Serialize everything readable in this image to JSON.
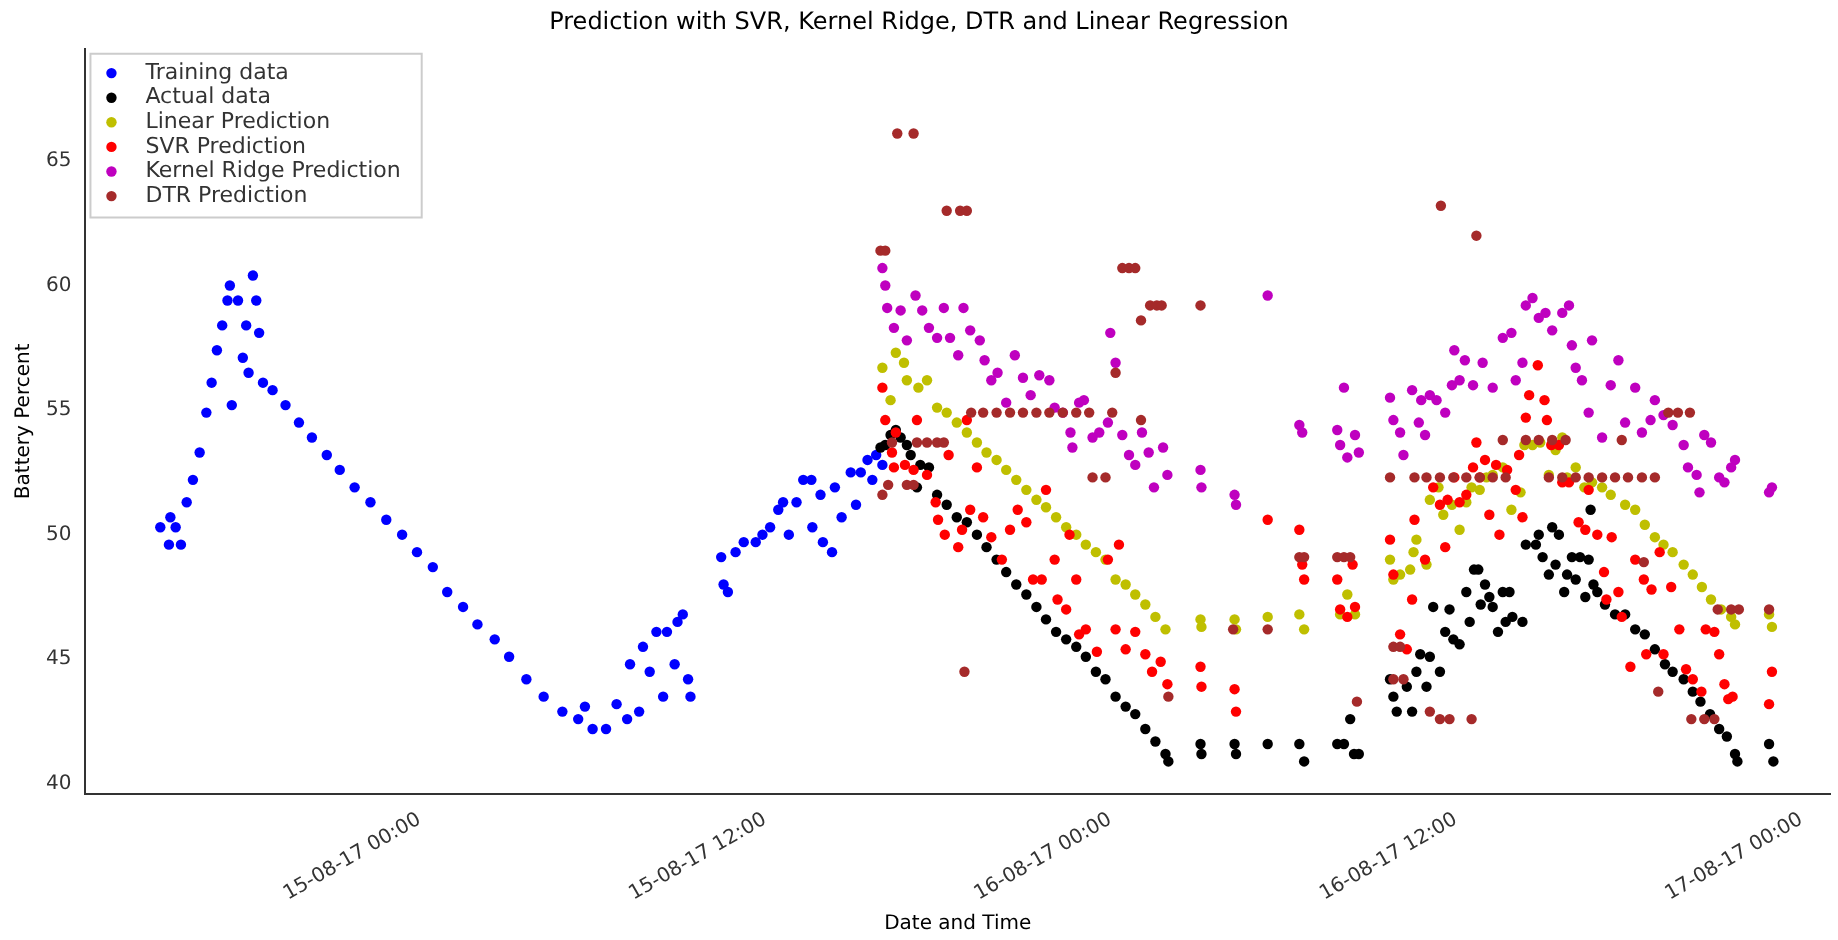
{
  "chart_data": {
    "type": "scatter",
    "title": "Prediction with SVR, Kernel Ridge, DTR and Linear Regression",
    "xlabel": "Date and Time",
    "ylabel": "Battery Percent",
    "xlim": [
      "--08-14T12:24",
      "--08-17T01:00"
    ],
    "ylim": [
      39.6,
      69.5
    ],
    "xticks": [
      {
        "value": "--08-15T00:00",
        "label": "15-08-17 00:00"
      },
      {
        "value": "--08-15T12:00",
        "label": "15-08-17 12:00"
      },
      {
        "value": "--08-16T00:00",
        "label": "16-08-17 00:00"
      },
      {
        "value": "--08-16T12:00",
        "label": "16-08-17 12:00"
      },
      {
        "value": "--08-17T00:00",
        "label": "17-08-17 00:00"
      }
    ],
    "yticks": [
      40,
      45,
      50,
      55,
      60,
      65
    ],
    "grid": false,
    "legend": "top left",
    "marker": "circle",
    "series": [
      {
        "name": "Training data",
        "color": "#0000ff",
        "x": [
          "--08-14T15:00",
          "--08-14T15:18",
          "--08-14T15:21",
          "--08-14T15:32",
          "--08-14T15:43",
          "--08-14T15:55",
          "--08-14T16:08",
          "--08-14T16:22",
          "--08-14T16:36",
          "--08-14T16:47",
          "--08-14T16:58",
          "--08-14T17:09",
          "--08-14T17:20",
          "--08-14T17:25",
          "--08-14T17:29",
          "--08-14T17:42",
          "--08-14T17:52",
          "--08-14T17:59",
          "--08-14T18:04",
          "--08-14T18:13",
          "--08-14T18:20",
          "--08-14T18:26",
          "--08-14T18:34",
          "--08-14T18:54",
          "--08-14T19:21",
          "--08-14T19:49",
          "--08-14T20:16",
          "--08-14T20:47",
          "--08-14T21:14",
          "--08-14T21:45",
          "--08-14T22:18",
          "--08-14T22:51",
          "--08-14T23:24",
          "--08-14T23:55",
          "--08-15T00:28",
          "--08-15T00:58",
          "--08-15T01:31",
          "--08-15T02:01",
          "--08-15T02:37",
          "--08-15T03:07",
          "--08-15T03:43",
          "--08-15T04:19",
          "--08-15T04:58",
          "--08-15T05:31",
          "--08-15T05:45",
          "--08-15T06:01",
          "--08-15T06:29",
          "--08-15T06:51",
          "--08-15T07:13",
          "--08-15T07:19",
          "--08-15T07:38",
          "--08-15T07:46",
          "--08-15T08:00",
          "--08-15T08:14",
          "--08-15T08:28",
          "--08-15T08:36",
          "--08-15T08:52",
          "--08-15T08:58",
          "--08-15T09:09",
          "--08-15T09:20",
          "--08-15T09:25",
          "--08-15T10:29",
          "--08-15T10:34",
          "--08-15T10:43",
          "--08-15T10:59",
          "--08-15T11:16",
          "--08-15T11:41",
          "--08-15T11:55",
          "--08-15T12:11",
          "--08-15T12:28",
          "--08-15T12:38",
          "--08-15T12:50",
          "--08-15T13:06",
          "--08-15T13:20",
          "--08-15T13:37",
          "--08-15T13:39",
          "--08-15T13:56",
          "--08-15T14:01",
          "--08-15T14:20",
          "--08-15T14:26",
          "--08-15T14:40",
          "--08-15T14:59",
          "--08-15T15:10",
          "--08-15T15:20",
          "--08-15T15:34",
          "--08-15T15:44",
          "--08-15T15:52",
          "--08-15T16:05"
        ],
        "values": [
          50.3,
          49.6,
          50.7,
          50.3,
          49.6,
          51.3,
          52.2,
          53.3,
          54.9,
          56.1,
          57.4,
          58.4,
          59.4,
          60.0,
          55.2,
          59.4,
          57.1,
          58.4,
          56.5,
          60.4,
          59.4,
          58.1,
          56.1,
          55.8,
          55.2,
          54.5,
          53.9,
          53.2,
          52.6,
          51.9,
          51.3,
          50.6,
          50.0,
          49.3,
          48.7,
          47.7,
          47.1,
          46.4,
          45.8,
          45.1,
          44.2,
          43.5,
          42.9,
          42.6,
          43.1,
          42.2,
          42.2,
          43.2,
          42.6,
          44.8,
          42.9,
          45.5,
          44.5,
          46.1,
          43.5,
          46.1,
          44.8,
          46.5,
          46.8,
          44.2,
          43.5,
          49.1,
          48.0,
          47.7,
          49.3,
          49.7,
          49.7,
          50.0,
          50.3,
          51.0,
          51.3,
          50.0,
          51.3,
          52.2,
          52.2,
          50.3,
          51.6,
          49.7,
          49.3,
          51.9,
          50.7,
          52.5,
          51.2,
          52.5,
          53.0,
          52.2,
          53.2,
          52.8
        ]
      },
      {
        "name": "Actual data",
        "color": "#000000",
        "x": [
          "--08-15T16:01",
          "--08-15T16:11",
          "--08-15T16:22",
          "--08-15T16:33",
          "--08-15T16:43",
          "--08-15T16:56",
          "--08-15T17:04",
          "--08-15T17:17",
          "--08-15T17:24",
          "--08-15T17:42",
          "--08-15T17:59",
          "--08-15T18:19",
          "--08-15T18:40",
          "--08-15T19:01",
          "--08-15T19:22",
          "--08-15T19:42",
          "--08-15T20:03",
          "--08-15T20:23",
          "--08-15T20:44",
          "--08-15T21:05",
          "--08-15T21:26",
          "--08-15T21:46",
          "--08-15T22:07",
          "--08-15T22:28",
          "--08-15T22:49",
          "--08-15T23:09",
          "--08-15T23:30",
          "--08-15T23:50",
          "--08-16T00:11",
          "--08-16T00:32",
          "--08-16T00:52",
          "--08-16T01:13",
          "--08-16T01:34",
          "--08-16T01:55",
          "--08-16T02:01",
          "--08-16T03:08",
          "--08-16T03:10",
          "--08-16T04:19",
          "--08-16T04:22",
          "--08-16T05:28",
          "--08-16T06:34",
          "--08-16T06:44",
          "--08-16T07:53",
          "--08-16T08:07",
          "--08-16T08:20",
          "--08-16T08:28",
          "--08-16T08:38",
          "--08-16T09:43",
          "--08-16T09:50",
          "--08-16T09:57",
          "--08-16T10:18",
          "--08-16T10:29",
          "--08-16T10:38",
          "--08-16T10:46",
          "--08-16T10:59",
          "--08-16T11:06",
          "--08-16T11:13",
          "--08-16T11:27",
          "--08-16T11:38",
          "--08-16T11:47",
          "--08-16T11:55",
          "--08-16T12:08",
          "--08-16T12:22",
          "--08-16T12:29",
          "--08-16T12:38",
          "--08-16T12:47",
          "--08-16T12:52",
          "--08-16T13:01",
          "--08-16T13:10",
          "--08-16T13:17",
          "--08-16T13:28",
          "--08-16T13:38",
          "--08-16T13:44",
          "--08-16T13:52",
          "--08-16T13:58",
          "--08-16T14:19",
          "--08-16T14:26",
          "--08-16T14:47",
          "--08-16T14:53",
          "--08-16T15:01",
          "--08-16T15:14",
          "--08-16T15:21",
          "--08-16T15:28",
          "--08-16T15:35",
          "--08-16T15:46",
          "--08-16T15:52",
          "--08-16T16:02",
          "--08-16T16:10",
          "--08-16T16:19",
          "--08-16T16:30",
          "--08-16T16:37",
          "--08-16T16:41",
          "--08-16T16:47",
          "--08-16T16:55",
          "--08-16T17:11",
          "--08-16T17:32",
          "--08-16T17:53",
          "--08-16T18:14",
          "--08-16T18:34",
          "--08-16T18:55",
          "--08-16T19:16",
          "--08-16T19:32",
          "--08-16T19:55",
          "--08-16T20:14",
          "--08-16T20:30",
          "--08-16T20:50",
          "--08-16T21:09",
          "--08-16T21:25",
          "--08-16T21:42",
          "--08-16T21:47",
          "--08-16T22:53",
          "--08-16T23:02"
        ],
        "values": [
          53.5,
          53.6,
          54.0,
          54.2,
          53.9,
          53.6,
          53.2,
          51.9,
          52.8,
          52.7,
          51.6,
          51.2,
          50.7,
          50.5,
          50.0,
          49.5,
          49.0,
          48.5,
          48.0,
          47.6,
          47.1,
          46.6,
          46.1,
          45.8,
          45.5,
          45.1,
          44.5,
          44.2,
          43.5,
          43.1,
          42.8,
          42.2,
          41.7,
          41.2,
          40.9,
          41.6,
          41.2,
          41.6,
          41.2,
          41.6,
          41.6,
          40.9,
          41.6,
          41.6,
          42.6,
          41.2,
          41.2,
          44.2,
          43.5,
          42.9,
          43.9,
          42.9,
          44.5,
          45.2,
          43.9,
          45.1,
          47.1,
          44.5,
          46.1,
          47.0,
          45.8,
          45.6,
          47.7,
          46.5,
          48.6,
          48.6,
          47.2,
          48.0,
          47.5,
          47.1,
          46.1,
          47.7,
          46.5,
          47.7,
          46.7,
          46.5,
          49.6,
          49.6,
          50.0,
          49.1,
          48.4,
          50.3,
          48.8,
          50.0,
          47.7,
          48.4,
          49.1,
          48.2,
          49.1,
          47.5,
          49.0,
          51.0,
          48.0,
          47.7,
          47.2,
          46.8,
          46.8,
          46.2,
          46.0,
          45.4,
          44.8,
          44.5,
          44.2,
          43.7,
          43.3,
          42.8,
          42.2,
          41.9,
          41.2,
          40.9,
          41.6,
          40.9
        ]
      },
      {
        "name": "Linear Prediction",
        "color": "#bfbf00",
        "x": [
          "--08-15T16:05",
          "--08-15T16:22",
          "--08-15T16:33",
          "--08-15T16:50",
          "--08-15T16:56",
          "--08-15T17:20",
          "--08-15T17:38",
          "--08-15T17:59",
          "--08-15T18:19",
          "--08-15T18:40",
          "--08-15T19:01",
          "--08-15T19:22",
          "--08-15T19:42",
          "--08-15T20:03",
          "--08-15T20:23",
          "--08-15T20:44",
          "--08-15T21:05",
          "--08-15T21:26",
          "--08-15T21:46",
          "--08-15T22:07",
          "--08-15T22:28",
          "--08-15T22:49",
          "--08-15T23:09",
          "--08-15T23:30",
          "--08-15T23:50",
          "--08-16T00:11",
          "--08-16T00:32",
          "--08-16T00:52",
          "--08-16T01:13",
          "--08-16T01:34",
          "--08-16T01:55",
          "--08-16T03:08",
          "--08-16T03:10",
          "--08-16T04:19",
          "--08-16T04:22",
          "--08-16T05:28",
          "--08-16T06:34",
          "--08-16T06:44",
          "--08-16T07:59",
          "--08-16T08:14",
          "--08-16T08:30",
          "--08-16T09:43",
          "--08-16T09:50",
          "--08-16T10:04",
          "--08-16T10:25",
          "--08-16T10:32",
          "--08-16T10:38",
          "--08-16T10:59",
          "--08-16T11:06",
          "--08-16T11:24",
          "--08-16T11:34",
          "--08-16T11:52",
          "--08-16T12:08",
          "--08-16T12:22",
          "--08-16T12:33",
          "--08-16T12:50",
          "--08-16T13:04",
          "--08-16T13:17",
          "--08-16T13:38",
          "--08-16T13:56",
          "--08-16T14:15",
          "--08-16T14:23",
          "--08-16T14:40",
          "--08-16T14:56",
          "--08-16T15:14",
          "--08-16T15:28",
          "--08-16T15:42",
          "--08-16T15:52",
          "--08-16T16:10",
          "--08-16T16:28",
          "--08-16T16:44",
          "--08-16T17:05",
          "--08-16T17:23",
          "--08-16T17:53",
          "--08-16T18:14",
          "--08-16T18:34",
          "--08-16T18:55",
          "--08-16T19:13",
          "--08-16T19:32",
          "--08-16T19:55",
          "--08-16T20:14",
          "--08-16T20:33",
          "--08-16T20:52",
          "--08-16T21:13",
          "--08-16T21:34",
          "--08-16T21:42",
          "--08-16T22:53",
          "--08-16T22:59"
        ],
        "values": [
          56.7,
          55.4,
          57.3,
          56.9,
          56.2,
          55.9,
          56.2,
          55.1,
          54.9,
          54.5,
          54.1,
          53.7,
          53.3,
          53.0,
          52.6,
          52.2,
          51.8,
          51.4,
          51.1,
          50.7,
          50.3,
          50.0,
          49.6,
          49.3,
          49.0,
          48.2,
          48.0,
          47.6,
          47.2,
          46.7,
          46.2,
          46.6,
          46.3,
          46.6,
          46.2,
          46.7,
          46.8,
          46.2,
          46.8,
          47.6,
          46.8,
          49.0,
          48.2,
          48.4,
          48.6,
          49.3,
          49.8,
          48.8,
          51.4,
          51.9,
          50.8,
          51.2,
          50.2,
          51.3,
          51.9,
          51.8,
          52.3,
          52.4,
          52.7,
          51.0,
          51.7,
          53.6,
          53.6,
          53.7,
          52.4,
          53.4,
          53.9,
          52.3,
          52.7,
          51.9,
          52.1,
          51.9,
          51.6,
          51.2,
          51.0,
          50.4,
          49.9,
          49.6,
          49.3,
          48.8,
          48.4,
          47.9,
          47.4,
          47.0,
          46.7,
          46.4,
          46.8,
          46.3
        ]
      },
      {
        "name": "SVR Prediction",
        "color": "#ff0000",
        "x": [
          "--08-15T16:05",
          "--08-15T16:11",
          "--08-15T16:25",
          "--08-15T16:29",
          "--08-15T16:33",
          "--08-15T16:52",
          "--08-15T17:10",
          "--08-15T17:17",
          "--08-15T17:38",
          "--08-15T17:56",
          "--08-15T18:01",
          "--08-15T18:15",
          "--08-15T18:23",
          "--08-15T18:43",
          "--08-15T18:51",
          "--08-15T19:01",
          "--08-15T19:08",
          "--08-15T19:22",
          "--08-15T19:35",
          "--08-15T19:52",
          "--08-15T20:14",
          "--08-15T20:31",
          "--08-15T20:47",
          "--08-15T21:05",
          "--08-15T21:19",
          "--08-15T21:37",
          "--08-15T21:46",
          "--08-15T22:04",
          "--08-15T22:10",
          "--08-15T22:28",
          "--08-15T22:35",
          "--08-15T22:49",
          "--08-15T22:55",
          "--08-15T23:09",
          "--08-15T23:32",
          "--08-15T23:55",
          "--08-16T00:11",
          "--08-16T00:18",
          "--08-16T00:32",
          "--08-16T00:52",
          "--08-16T01:13",
          "--08-16T01:27",
          "--08-16T01:45",
          "--08-16T01:59",
          "--08-16T03:08",
          "--08-16T03:10",
          "--08-16T04:19",
          "--08-16T04:22",
          "--08-16T05:28",
          "--08-16T06:34",
          "--08-16T06:40",
          "--08-16T06:44",
          "--08-16T07:53",
          "--08-16T07:59",
          "--08-16T08:14",
          "--08-16T08:25",
          "--08-16T08:30",
          "--08-16T09:43",
          "--08-16T09:50",
          "--08-16T10:04",
          "--08-16T10:18",
          "--08-16T10:29",
          "--08-16T10:34",
          "--08-16T10:56",
          "--08-16T11:13",
          "--08-16T11:27",
          "--08-16T11:38",
          "--08-16T11:43",
          "--08-16T11:57",
          "--08-16T12:08",
          "--08-16T12:22",
          "--08-16T12:36",
          "--08-16T12:43",
          "--08-16T12:50",
          "--08-16T13:01",
          "--08-16T13:10",
          "--08-16T13:24",
          "--08-16T13:31",
          "--08-16T13:47",
          "--08-16T14:05",
          "--08-16T14:12",
          "--08-16T14:19",
          "--08-16T14:26",
          "--08-16T14:33",
          "--08-16T14:51",
          "--08-16T15:05",
          "--08-16T15:10",
          "--08-16T15:19",
          "--08-16T15:35",
          "--08-16T15:42",
          "--08-16T15:56",
          "--08-16T16:16",
          "--08-16T16:30",
          "--08-16T16:37",
          "--08-16T16:55",
          "--08-16T17:09",
          "--08-16T17:14",
          "--08-16T17:25",
          "--08-16T17:39",
          "--08-16T17:46",
          "--08-16T18:04",
          "--08-16T18:14",
          "--08-16T18:32",
          "--08-16T18:37",
          "--08-16T18:48",
          "--08-16T19:05",
          "--08-16T19:13",
          "--08-16T19:29",
          "--08-16T19:46",
          "--08-16T20:00",
          "--08-16T20:14",
          "--08-16T20:32",
          "--08-16T20:41",
          "--08-16T20:59",
          "--08-16T21:09",
          "--08-16T21:20",
          "--08-16T21:28",
          "--08-16T21:37",
          "--08-16T22:53",
          "--08-16T22:59"
        ],
        "values": [
          55.9,
          54.6,
          53.3,
          52.7,
          54.1,
          52.8,
          52.6,
          54.6,
          52.4,
          51.3,
          50.6,
          50.0,
          53.2,
          49.5,
          50.2,
          54.6,
          51.0,
          52.7,
          50.7,
          49.9,
          49.0,
          50.2,
          51.0,
          50.5,
          48.2,
          48.2,
          51.8,
          49.0,
          47.4,
          47.0,
          50.0,
          48.2,
          46.0,
          46.2,
          45.3,
          49.0,
          46.2,
          49.6,
          45.4,
          46.1,
          45.2,
          44.5,
          44.9,
          44.0,
          44.7,
          43.9,
          43.8,
          42.9,
          50.6,
          50.2,
          48.8,
          48.2,
          48.2,
          47.0,
          46.7,
          48.8,
          47.1,
          49.8,
          48.4,
          46.0,
          45.4,
          47.4,
          50.6,
          49.0,
          51.9,
          51.2,
          49.5,
          51.4,
          52.3,
          51.3,
          51.6,
          52.7,
          53.7,
          52.3,
          53.0,
          50.8,
          52.8,
          50.0,
          52.6,
          51.8,
          53.2,
          50.7,
          54.7,
          55.6,
          56.8,
          55.4,
          54.6,
          53.6,
          53.6,
          52.1,
          52.1,
          50.5,
          50.2,
          51.8,
          50.0,
          48.5,
          47.4,
          49.9,
          47.7,
          46.7,
          44.7,
          49.0,
          48.2,
          45.2,
          47.8,
          49.3,
          45.2,
          47.9,
          46.2,
          44.6,
          44.2,
          43.7,
          46.2,
          46.1,
          45.2,
          44.0,
          43.4,
          43.5,
          43.2,
          44.5
        ]
      },
      {
        "name": "Kernel Ridge Prediction",
        "color": "#bf00bf",
        "x": [
          "--08-15T16:05",
          "--08-15T16:11",
          "--08-15T16:15",
          "--08-15T16:29",
          "--08-15T16:43",
          "--08-15T16:56",
          "--08-15T17:14",
          "--08-15T17:28",
          "--08-15T17:42",
          "--08-15T17:59",
          "--08-15T18:13",
          "--08-15T18:26",
          "--08-15T18:43",
          "--08-15T18:54",
          "--08-15T19:08",
          "--08-15T19:28",
          "--08-15T19:38",
          "--08-15T19:52",
          "--08-15T20:05",
          "--08-15T20:23",
          "--08-15T20:41",
          "--08-15T20:58",
          "--08-15T21:14",
          "--08-15T21:32",
          "--08-15T21:53",
          "--08-15T22:04",
          "--08-15T22:21",
          "--08-15T22:37",
          "--08-15T22:41",
          "--08-15T22:55",
          "--08-15T23:05",
          "--08-15T23:23",
          "--08-15T23:37",
          "--08-15T23:55",
          "--08-16T00:00",
          "--08-16T00:11",
          "--08-16T00:25",
          "--08-16T00:39",
          "--08-16T00:52",
          "--08-16T01:06",
          "--08-16T01:20",
          "--08-16T01:31",
          "--08-16T01:50",
          "--08-16T01:59",
          "--08-16T03:08",
          "--08-16T03:10",
          "--08-16T04:19",
          "--08-16T04:22",
          "--08-16T05:28",
          "--08-16T06:34",
          "--08-16T06:40",
          "--08-16T07:53",
          "--08-16T07:59",
          "--08-16T08:07",
          "--08-16T08:14",
          "--08-16T08:30",
          "--08-16T08:38",
          "--08-16T09:43",
          "--08-16T09:50",
          "--08-16T10:04",
          "--08-16T10:11",
          "--08-16T10:29",
          "--08-16T10:43",
          "--08-16T10:48",
          "--08-16T10:56",
          "--08-16T11:06",
          "--08-16T11:20",
          "--08-16T11:38",
          "--08-16T11:52",
          "--08-16T11:57",
          "--08-16T12:08",
          "--08-16T12:19",
          "--08-16T12:36",
          "--08-16T12:56",
          "--08-16T13:17",
          "--08-16T13:38",
          "--08-16T13:56",
          "--08-16T14:05",
          "--08-16T14:19",
          "--08-16T14:26",
          "--08-16T14:40",
          "--08-16T14:53",
          "--08-16T15:07",
          "--08-16T15:21",
          "--08-16T15:42",
          "--08-16T15:56",
          "--08-16T16:02",
          "--08-16T16:10",
          "--08-16T16:23",
          "--08-16T16:37",
          "--08-16T16:44",
          "--08-16T17:05",
          "--08-16T17:23",
          "--08-16T17:39",
          "--08-16T17:53",
          "--08-16T18:14",
          "--08-16T18:28",
          "--08-16T18:46",
          "--08-16T18:55",
          "--08-16T19:13",
          "--08-16T19:32",
          "--08-16T19:55",
          "--08-16T20:04",
          "--08-16T20:22",
          "--08-16T20:28",
          "--08-16T20:38",
          "--08-16T20:52",
          "--08-16T21:09",
          "--08-16T21:20",
          "--08-16T21:34",
          "--08-16T21:42",
          "--08-16T22:53",
          "--08-16T22:59"
        ],
        "values": [
          60.7,
          60.0,
          59.1,
          58.3,
          59.0,
          57.8,
          59.6,
          59.0,
          58.3,
          57.9,
          59.1,
          57.9,
          57.2,
          59.1,
          58.2,
          57.8,
          57.0,
          56.2,
          56.5,
          55.3,
          57.2,
          56.3,
          55.6,
          56.4,
          56.2,
          55.1,
          54.9,
          54.1,
          53.5,
          55.3,
          55.4,
          53.9,
          54.1,
          54.5,
          58.1,
          56.9,
          54.0,
          53.2,
          52.8,
          54.1,
          53.3,
          51.9,
          53.5,
          52.4,
          52.6,
          51.9,
          51.6,
          51.2,
          59.6,
          54.4,
          54.1,
          54.2,
          53.6,
          55.9,
          53.1,
          54.0,
          53.3,
          55.5,
          54.6,
          54.1,
          53.2,
          55.8,
          54.5,
          55.4,
          54.0,
          55.6,
          55.4,
          54.9,
          56.0,
          57.4,
          56.2,
          57.0,
          56.0,
          56.9,
          55.9,
          57.9,
          58.1,
          56.2,
          56.9,
          59.2,
          59.5,
          58.7,
          58.9,
          58.2,
          58.9,
          59.2,
          57.6,
          56.7,
          56.2,
          54.9,
          57.8,
          53.9,
          56.0,
          57.0,
          54.5,
          55.9,
          54.1,
          54.6,
          55.4,
          54.8,
          54.4,
          53.6,
          52.7,
          52.4,
          51.7,
          54.0,
          53.7,
          52.3,
          52.1,
          52.7,
          53.0,
          51.7,
          51.9
        ]
      },
      {
        "name": "DTR Prediction",
        "color": "#a52a2a",
        "x": [
          "--08-15T16:01",
          "--08-15T16:11",
          "--08-15T16:05",
          "--08-15T16:17",
          "--08-15T16:25",
          "--08-15T16:36",
          "--08-15T17:10",
          "--08-15T16:56",
          "--08-15T17:10",
          "--08-15T17:17",
          "--08-15T17:38",
          "--08-15T17:59",
          "--08-15T18:13",
          "--08-15T18:19",
          "--08-15T18:47",
          "--08-15T19:01",
          "--08-15T18:56",
          "--08-15T19:10",
          "--08-15T19:35",
          "--08-15T20:03",
          "--08-15T20:31",
          "--08-15T20:58",
          "--08-15T21:26",
          "--08-15T21:53",
          "--08-15T22:21",
          "--08-15T22:49",
          "--08-15T23:16",
          "--08-15T23:23",
          "--08-15T23:50",
          "--08-16T00:04",
          "--08-16T00:11",
          "--08-16T00:25",
          "--08-16T00:39",
          "--08-16T00:52",
          "--08-16T01:04",
          "--08-16T01:23",
          "--08-16T01:37",
          "--08-16T01:47",
          "--08-16T01:04",
          "--08-16T02:01",
          "--08-16T03:08",
          "--08-16T04:16",
          "--08-16T05:28",
          "--08-16T06:34",
          "--08-16T06:44",
          "--08-16T07:53",
          "--08-16T08:07",
          "--08-16T08:20",
          "--08-16T08:34",
          "--08-16T09:43",
          "--08-16T09:50",
          "--08-16T10:04",
          "--08-16T09:50",
          "--08-16T10:11",
          "--08-16T10:34",
          "--08-16T10:59",
          "--08-16T11:27",
          "--08-16T11:55",
          "--08-16T12:22",
          "--08-16T12:50",
          "--08-16T13:17",
          "--08-16T13:44",
          "--08-16T11:06",
          "--08-16T11:27",
          "--08-16T11:47",
          "--08-16T11:29",
          "--08-16T12:43",
          "--08-16T12:33",
          "--08-16T13:38",
          "--08-16T14:26",
          "--08-16T14:53",
          "--08-16T15:21",
          "--08-16T15:49",
          "--08-16T15:14",
          "--08-16T15:42",
          "--08-16T16:10",
          "--08-16T16:37",
          "--08-16T17:05",
          "--08-16T17:32",
          "--08-16T17:59",
          "--08-16T18:28",
          "--08-16T18:55",
          "--08-16T17:46",
          "--08-16T18:32",
          "--08-16T19:02",
          "--08-16T19:23",
          "--08-16T19:43",
          "--08-16T20:08",
          "--08-16T20:11",
          "--08-16T20:38",
          "--08-16T20:59",
          "--08-16T21:06",
          "--08-16T21:34",
          "--08-16T21:50",
          "--08-16T22:53"
        ],
        "values": [
          61.4,
          61.4,
          51.6,
          52.0,
          53.7,
          66.1,
          66.1,
          52.0,
          52.0,
          53.7,
          53.7,
          53.7,
          53.7,
          63.0,
          63.0,
          63.0,
          44.5,
          54.9,
          54.9,
          54.9,
          54.9,
          54.9,
          54.9,
          54.9,
          54.9,
          54.9,
          54.9,
          52.3,
          52.3,
          54.9,
          56.5,
          60.7,
          60.7,
          60.7,
          58.6,
          59.2,
          59.2,
          59.2,
          54.6,
          43.5,
          59.2,
          46.2,
          46.2,
          49.1,
          49.1,
          49.1,
          49.1,
          49.1,
          43.3,
          52.3,
          45.5,
          45.5,
          44.2,
          44.2,
          52.3,
          52.3,
          52.3,
          52.3,
          52.3,
          52.3,
          52.3,
          52.3,
          42.9,
          42.6,
          42.6,
          63.2,
          62.0,
          42.6,
          53.8,
          53.8,
          53.8,
          53.8,
          53.8,
          52.3,
          52.3,
          52.3,
          52.3,
          52.3,
          52.3,
          52.3,
          52.3,
          52.3,
          53.8,
          48.9,
          43.7,
          54.9,
          54.9,
          54.9,
          42.6,
          42.6,
          42.6,
          47.0,
          47.0,
          47.0,
          47.0
        ]
      }
    ]
  }
}
